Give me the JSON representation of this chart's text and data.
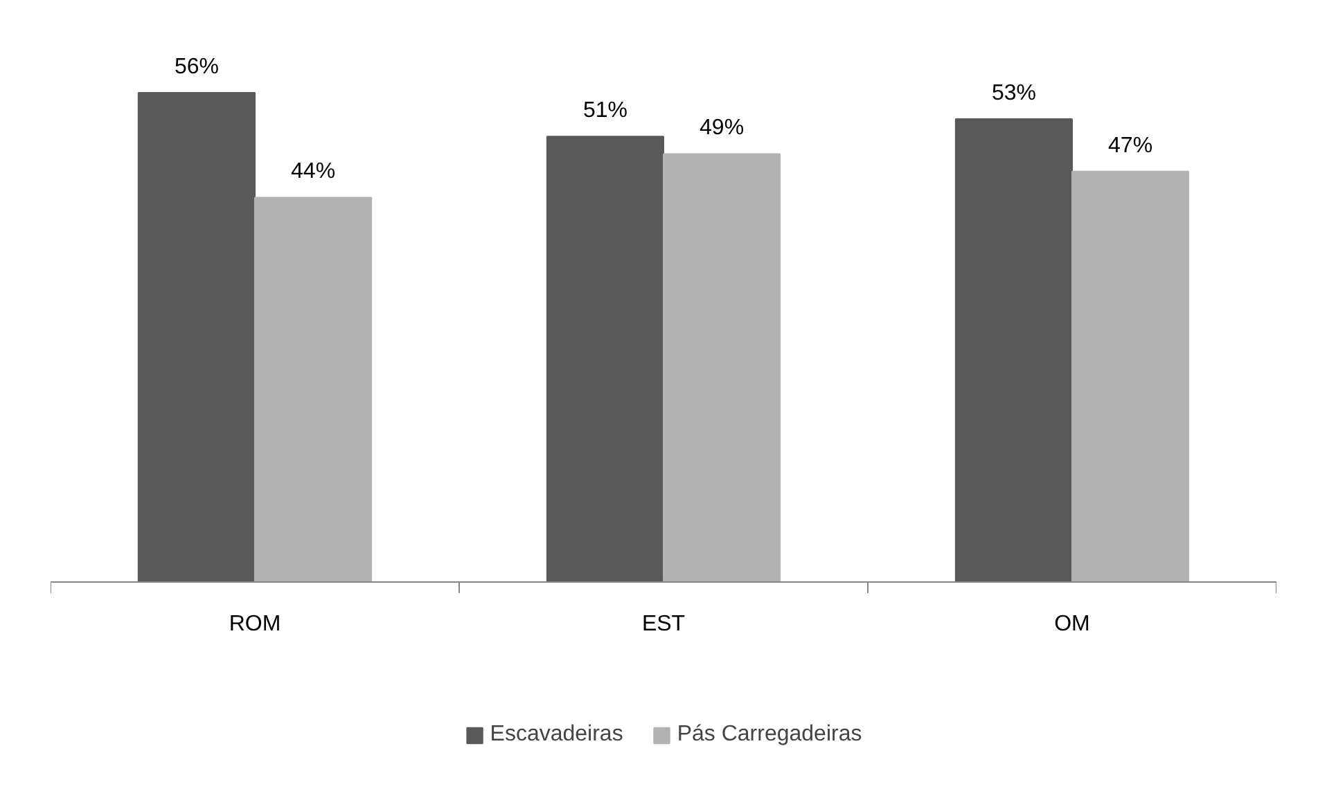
{
  "chart_data": {
    "type": "bar",
    "categories": [
      "ROM",
      "EST",
      "OM"
    ],
    "series": [
      {
        "name": "Escavadeiras",
        "color": "#595959",
        "values": [
          56,
          51,
          53
        ],
        "value_labels": [
          "56%",
          "51%",
          "53%"
        ]
      },
      {
        "name": "Pás Carregadeiras",
        "color": "#b2b2b2",
        "values": [
          44,
          49,
          47
        ],
        "value_labels": [
          "44%",
          "49%",
          "47%"
        ]
      }
    ],
    "legend": "bottom"
  }
}
